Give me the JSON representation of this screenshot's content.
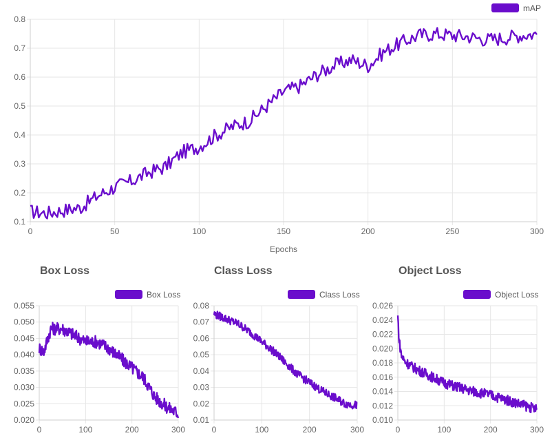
{
  "colors": {
    "series": "#6a0dcc",
    "grid": "#e6e6e6",
    "axis": "#666666"
  },
  "chart_data": [
    {
      "id": "map",
      "type": "line",
      "title": "",
      "xlabel": "Epochs",
      "ylabel": "",
      "xlim": [
        0,
        300
      ],
      "ylim": [
        0.1,
        0.8
      ],
      "xticks": [
        "0",
        "50",
        "100",
        "150",
        "200",
        "250",
        "300"
      ],
      "yticks": [
        "0.1",
        "0.2",
        "0.3",
        "0.4",
        "0.5",
        "0.6",
        "0.7",
        "0.8"
      ],
      "legend": "top-right",
      "grid": true,
      "series": [
        {
          "name": "mAP",
          "x": [
            0,
            10,
            20,
            30,
            40,
            50,
            60,
            70,
            80,
            90,
            100,
            110,
            120,
            130,
            140,
            150,
            160,
            170,
            180,
            190,
            200,
            210,
            220,
            230,
            240,
            250,
            260,
            270,
            280,
            290,
            300
          ],
          "values": [
            0.135,
            0.13,
            0.14,
            0.15,
            0.19,
            0.22,
            0.24,
            0.27,
            0.29,
            0.34,
            0.36,
            0.4,
            0.43,
            0.45,
            0.5,
            0.55,
            0.57,
            0.61,
            0.64,
            0.66,
            0.64,
            0.69,
            0.72,
            0.745,
            0.75,
            0.745,
            0.74,
            0.73,
            0.735,
            0.745,
            0.75
          ],
          "noise": 0.025
        }
      ]
    },
    {
      "id": "box",
      "type": "line",
      "title": "Box Loss",
      "xlabel": "",
      "xlim": [
        0,
        300
      ],
      "ylim": [
        0.02,
        0.055
      ],
      "xticks": [
        "0",
        "100",
        "200",
        "300"
      ],
      "yticks": [
        "0.020",
        "0.025",
        "0.030",
        "0.035",
        "0.040",
        "0.045",
        "0.050",
        "0.055"
      ],
      "legend": "top-right",
      "grid": true,
      "series": [
        {
          "name": "Box Loss",
          "x": [
            0,
            10,
            25,
            50,
            75,
            100,
            125,
            150,
            175,
            200,
            225,
            250,
            275,
            300
          ],
          "values": [
            0.042,
            0.041,
            0.048,
            0.048,
            0.046,
            0.044,
            0.044,
            0.042,
            0.039,
            0.036,
            0.033,
            0.027,
            0.024,
            0.022
          ],
          "noise": 0.002
        }
      ]
    },
    {
      "id": "class",
      "type": "line",
      "title": "Class Loss",
      "xlabel": "",
      "xlim": [
        0,
        300
      ],
      "ylim": [
        0.01,
        0.08
      ],
      "xticks": [
        "0",
        "100",
        "200",
        "300"
      ],
      "yticks": [
        "0.01",
        "0.02",
        "0.03",
        "0.04",
        "0.05",
        "0.06",
        "0.07",
        "0.08"
      ],
      "legend": "top-right",
      "grid": true,
      "series": [
        {
          "name": "Class Loss",
          "x": [
            0,
            25,
            50,
            75,
            100,
            125,
            150,
            175,
            200,
            225,
            250,
            275,
            300
          ],
          "values": [
            0.075,
            0.072,
            0.069,
            0.064,
            0.058,
            0.052,
            0.045,
            0.038,
            0.033,
            0.028,
            0.024,
            0.02,
            0.019
          ],
          "noise": 0.0025
        }
      ]
    },
    {
      "id": "object",
      "type": "line",
      "title": "Object Loss",
      "xlabel": "",
      "xlim": [
        0,
        300
      ],
      "ylim": [
        0.01,
        0.026
      ],
      "xticks": [
        "0",
        "100",
        "200",
        "300"
      ],
      "yticks": [
        "0.010",
        "0.012",
        "0.014",
        "0.016",
        "0.018",
        "0.020",
        "0.022",
        "0.024",
        "0.026"
      ],
      "legend": "top-right",
      "grid": true,
      "series": [
        {
          "name": "Object Loss",
          "x": [
            0,
            3,
            8,
            15,
            30,
            50,
            75,
            100,
            150,
            200,
            250,
            300
          ],
          "values": [
            0.0245,
            0.021,
            0.019,
            0.0182,
            0.0175,
            0.0168,
            0.016,
            0.0152,
            0.0142,
            0.0135,
            0.0125,
            0.0115
          ],
          "noise": 0.0007
        }
      ]
    }
  ]
}
